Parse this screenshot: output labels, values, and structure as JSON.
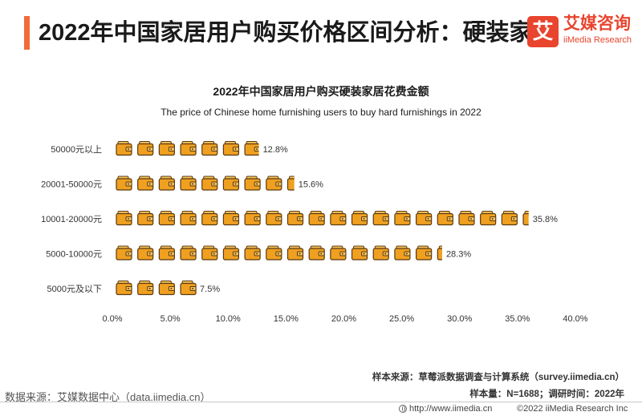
{
  "header": {
    "title": "2022年中国家居用户购买价格区间分析：硬装家居",
    "accent_color": "#f26b38"
  },
  "logo": {
    "mark": "艾",
    "name_cn": "艾媒咨询",
    "name_en": "iiMedia Research",
    "color": "#e8442e"
  },
  "chart_data": {
    "type": "bar",
    "orientation": "horizontal",
    "title": "2022年中国家居用户购买硬装家居花费金额",
    "subtitle": "The price of Chinese home furnishing users to buy hard furnishings in 2022",
    "categories": [
      "50000元以上",
      "20001-50000元",
      "10001-20000元",
      "5000-10000元",
      "5000元及以下"
    ],
    "values": [
      12.8,
      15.6,
      35.8,
      28.3,
      7.5
    ],
    "value_labels": [
      "12.8%",
      "15.6%",
      "35.8%",
      "28.3%",
      "7.5%"
    ],
    "x_ticks": [
      "0.0%",
      "5.0%",
      "10.0%",
      "15.0%",
      "20.0%",
      "25.0%",
      "30.0%",
      "35.0%",
      "40.0%"
    ],
    "xlim": [
      0,
      40
    ],
    "icon": "wallet-icon",
    "icon_unit_percent": 1.85,
    "icon_color": "#f0a020",
    "icon_stroke": "#5a3a12",
    "grid": false,
    "legend": "none"
  },
  "notes": {
    "source": "样本来源：草莓派数据调查与计算系统（survey.iimedia.cn）",
    "sample": "样本量：N=1688；调研时间：2022年"
  },
  "footer": {
    "data_source": "数据来源：艾媒数据中心（data.iimedia.cn）",
    "url": "http://www.iimedia.cn",
    "copyright": "©2022  iiMedia Research  Inc"
  }
}
